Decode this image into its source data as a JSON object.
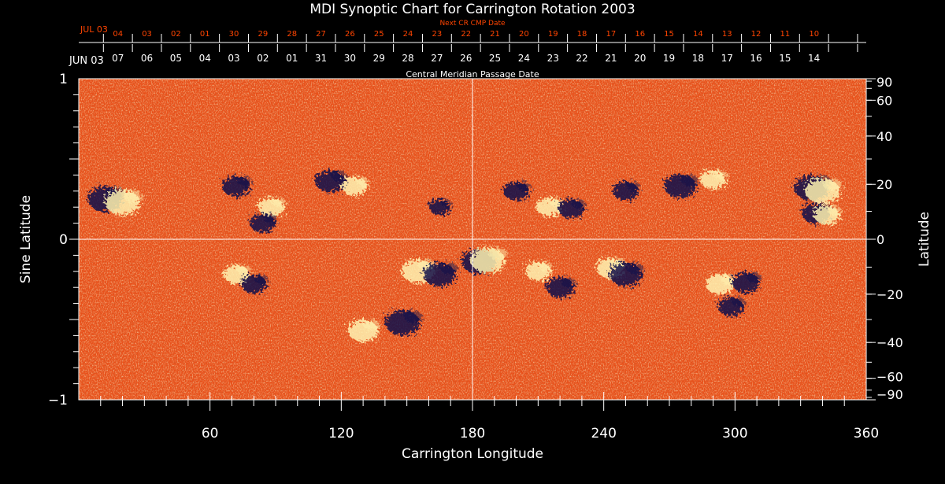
{
  "chart_data": {
    "type": "heatmap",
    "title": "MDI Synoptic Chart for Carrington Rotation 2003",
    "xlabel": "Carrington Longitude",
    "ylabel_left": "Sine Latitude",
    "ylabel_right": "Latitude",
    "xlim": [
      0,
      360
    ],
    "ylim": [
      -1,
      1
    ],
    "x_ticks": [
      60,
      120,
      180,
      240,
      300,
      360
    ],
    "y_ticks": [
      {
        "value": 1,
        "label": "1"
      },
      {
        "value": 0,
        "label": "0"
      },
      {
        "value": -1,
        "label": "−1"
      }
    ],
    "latitude_ticks": [
      {
        "deg": 90,
        "label": "90"
      },
      {
        "deg": 60,
        "label": "60"
      },
      {
        "deg": 40,
        "label": "40"
      },
      {
        "deg": 20,
        "label": "20"
      },
      {
        "deg": 0,
        "label": "0"
      },
      {
        "deg": -20,
        "label": "−20"
      },
      {
        "deg": -40,
        "label": "−40"
      },
      {
        "deg": -60,
        "label": "−60"
      },
      {
        "deg": -90,
        "label": "−90"
      }
    ],
    "axis_top_outer": {
      "title": "Next CR CMP Date",
      "start_label": "JUL 03",
      "labels": [
        "04",
        "03",
        "02",
        "01",
        "30",
        "29",
        "28",
        "27",
        "26",
        "25",
        "24",
        "23",
        "22",
        "21",
        "20",
        "19",
        "18",
        "17",
        "16",
        "15",
        "14",
        "13",
        "12",
        "11",
        "10"
      ],
      "color": "#ff4400"
    },
    "axis_top_inner": {
      "title": "Central Meridian Passage Date",
      "start_label": "JUN 03",
      "labels": [
        "07",
        "06",
        "05",
        "04",
        "03",
        "02",
        "01",
        "31",
        "30",
        "29",
        "28",
        "27",
        "26",
        "25",
        "24",
        "23",
        "22",
        "21",
        "20",
        "19",
        "18",
        "17",
        "16",
        "15",
        "14"
      ],
      "color": "#ffffff"
    },
    "guide_lines": {
      "longitude": 180,
      "sine_latitude": 0
    },
    "colors": {
      "background": "#e8501a",
      "positive": "#fff2b0",
      "negative": "#12124a",
      "axis": "#ffffff"
    },
    "regions": [
      {
        "lon": 12,
        "lat": 0.25,
        "polarity": "negative",
        "strength": 1.0
      },
      {
        "lon": 20,
        "lat": 0.23,
        "polarity": "positive",
        "strength": 1.0
      },
      {
        "lon": 72,
        "lat": 0.33,
        "polarity": "negative",
        "strength": 0.7
      },
      {
        "lon": 88,
        "lat": 0.2,
        "polarity": "positive",
        "strength": 0.6
      },
      {
        "lon": 84,
        "lat": 0.1,
        "polarity": "negative",
        "strength": 0.6
      },
      {
        "lon": 115,
        "lat": 0.36,
        "polarity": "negative",
        "strength": 0.8
      },
      {
        "lon": 126,
        "lat": 0.33,
        "polarity": "positive",
        "strength": 0.6
      },
      {
        "lon": 165,
        "lat": 0.2,
        "polarity": "negative",
        "strength": 0.4
      },
      {
        "lon": 72,
        "lat": -0.22,
        "polarity": "positive",
        "strength": 0.6
      },
      {
        "lon": 80,
        "lat": -0.28,
        "polarity": "negative",
        "strength": 0.6
      },
      {
        "lon": 155,
        "lat": -0.2,
        "polarity": "positive",
        "strength": 0.9
      },
      {
        "lon": 165,
        "lat": -0.22,
        "polarity": "negative",
        "strength": 0.9
      },
      {
        "lon": 148,
        "lat": -0.52,
        "polarity": "negative",
        "strength": 1.0
      },
      {
        "lon": 130,
        "lat": -0.57,
        "polarity": "positive",
        "strength": 0.8
      },
      {
        "lon": 183,
        "lat": -0.14,
        "polarity": "negative",
        "strength": 1.0
      },
      {
        "lon": 187,
        "lat": -0.13,
        "polarity": "positive",
        "strength": 1.0
      },
      {
        "lon": 200,
        "lat": 0.3,
        "polarity": "negative",
        "strength": 0.6
      },
      {
        "lon": 215,
        "lat": 0.2,
        "polarity": "positive",
        "strength": 0.6
      },
      {
        "lon": 225,
        "lat": 0.19,
        "polarity": "negative",
        "strength": 0.6
      },
      {
        "lon": 250,
        "lat": 0.3,
        "polarity": "negative",
        "strength": 0.6
      },
      {
        "lon": 275,
        "lat": 0.33,
        "polarity": "negative",
        "strength": 0.9
      },
      {
        "lon": 290,
        "lat": 0.37,
        "polarity": "positive",
        "strength": 0.6
      },
      {
        "lon": 335,
        "lat": 0.32,
        "polarity": "negative",
        "strength": 1.0
      },
      {
        "lon": 340,
        "lat": 0.3,
        "polarity": "positive",
        "strength": 1.0
      },
      {
        "lon": 337,
        "lat": 0.16,
        "polarity": "negative",
        "strength": 0.7
      },
      {
        "lon": 342,
        "lat": 0.15,
        "polarity": "positive",
        "strength": 0.6
      },
      {
        "lon": 210,
        "lat": -0.2,
        "polarity": "positive",
        "strength": 0.6
      },
      {
        "lon": 220,
        "lat": -0.3,
        "polarity": "negative",
        "strength": 0.7
      },
      {
        "lon": 243,
        "lat": -0.18,
        "polarity": "positive",
        "strength": 0.7
      },
      {
        "lon": 250,
        "lat": -0.22,
        "polarity": "negative",
        "strength": 0.9
      },
      {
        "lon": 293,
        "lat": -0.28,
        "polarity": "positive",
        "strength": 0.7
      },
      {
        "lon": 305,
        "lat": -0.27,
        "polarity": "negative",
        "strength": 0.7
      },
      {
        "lon": 298,
        "lat": -0.42,
        "polarity": "negative",
        "strength": 0.6
      }
    ]
  }
}
